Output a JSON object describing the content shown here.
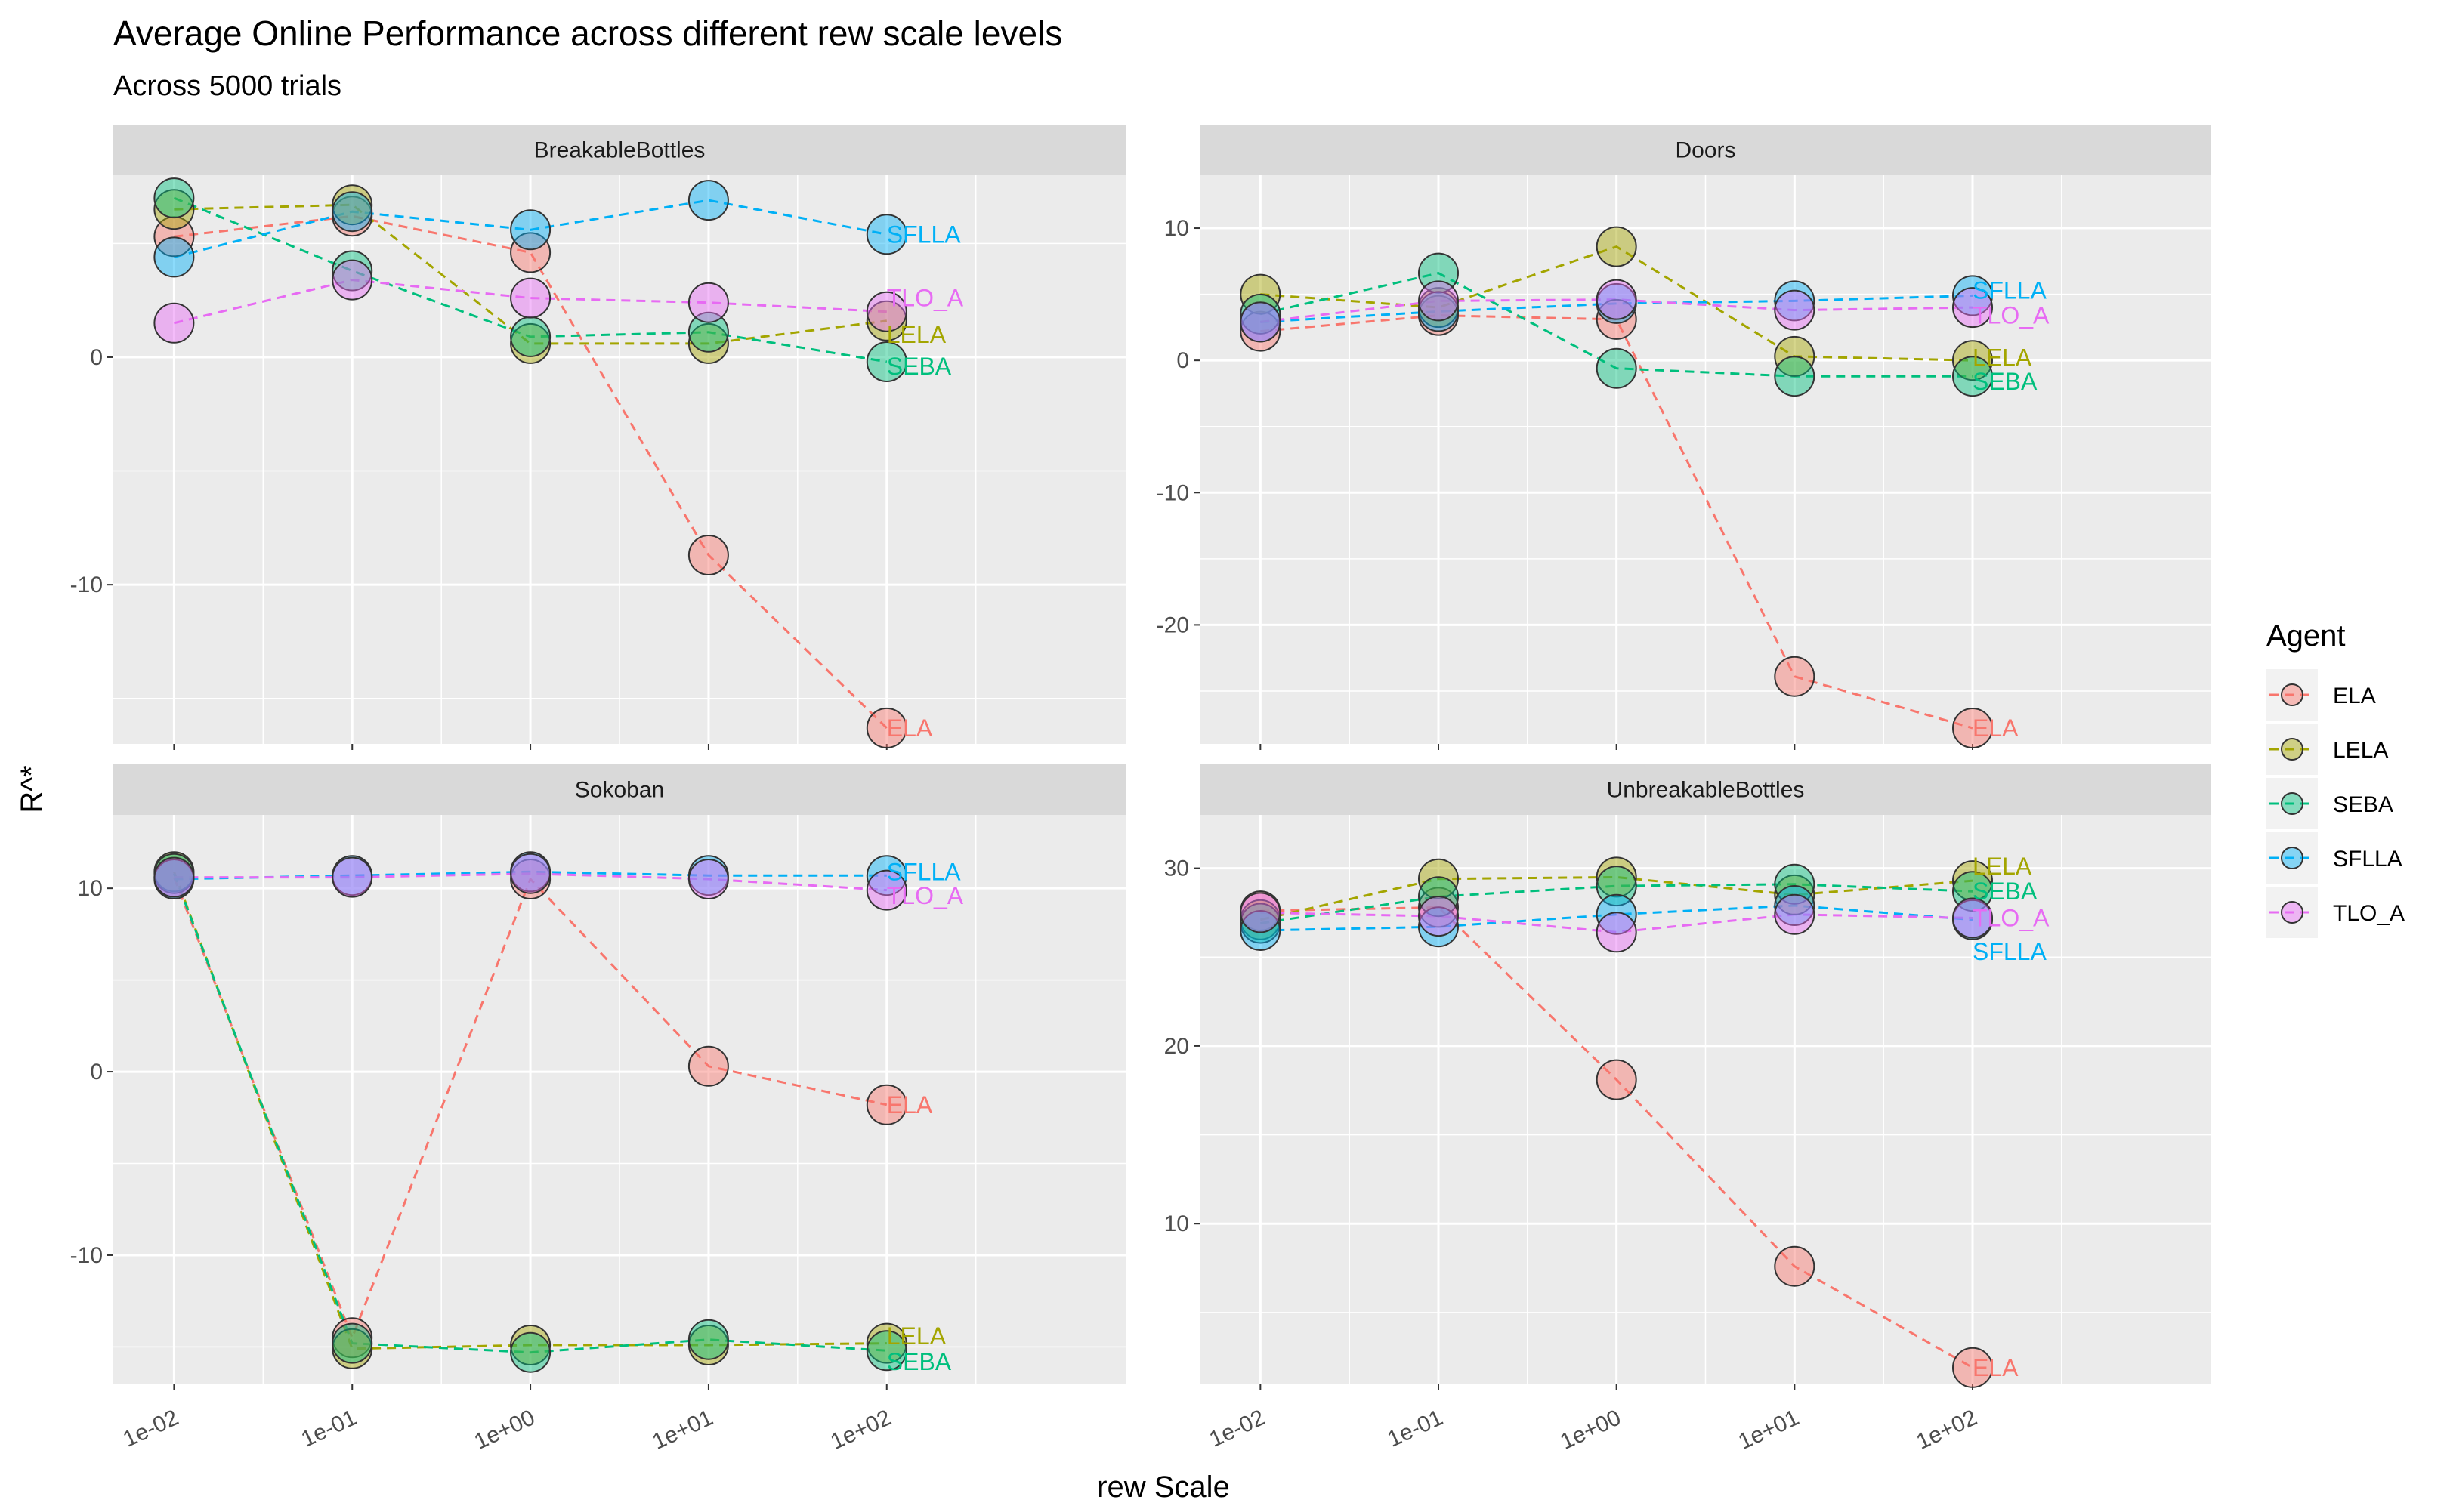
{
  "title": "Average Online Performance across different rew scale levels",
  "subtitle": "Across 5000 trials",
  "xlabel": "rew Scale",
  "ylabel": "R^*",
  "legend": {
    "title": "Agent",
    "items": [
      {
        "name": "ELA",
        "color": "#F8766D"
      },
      {
        "name": "LELA",
        "color": "#A3A500"
      },
      {
        "name": "SEBA",
        "color": "#00BF7D"
      },
      {
        "name": "SFLLA",
        "color": "#00B0F6"
      },
      {
        "name": "TLO_A",
        "color": "#E76BF3"
      }
    ]
  },
  "chart_data": {
    "type": "line",
    "x_scale": "log10",
    "x": [
      0.01,
      0.1,
      1,
      10,
      100
    ],
    "x_tick_labels": [
      "1e-02",
      "1e-01",
      "1e+00",
      "1e+01",
      "1e+02"
    ],
    "xlim": [
      0.01,
      1000
    ],
    "panels": [
      {
        "title": "BreakableBottles",
        "ylim": [
          -17,
          8
        ],
        "y_ticks": [
          0,
          -10
        ],
        "y_tick_labels": [
          "0",
          "-10"
        ],
        "series": [
          {
            "name": "ELA",
            "values": [
              5.3,
              6.2,
              4.6,
              -8.7,
              -16.3
            ]
          },
          {
            "name": "LELA",
            "values": [
              6.5,
              6.7,
              0.6,
              0.6,
              1.6
            ]
          },
          {
            "name": "SEBA",
            "values": [
              7.0,
              3.8,
              0.9,
              1.1,
              -0.2
            ]
          },
          {
            "name": "SFLLA",
            "values": [
              4.4,
              6.4,
              5.6,
              6.9,
              5.4
            ]
          },
          {
            "name": "TLO_A",
            "values": [
              1.5,
              3.4,
              2.6,
              2.4,
              2.0
            ]
          }
        ],
        "end_labels": [
          {
            "text": "SFLLA",
            "series": "SFLLA",
            "value": 5.4
          },
          {
            "text": "TLO_A",
            "series": "TLO_A",
            "value": 2.6
          },
          {
            "text": "LELA",
            "series": "LELA",
            "value": 1.0
          },
          {
            "text": "SEBA",
            "series": "SEBA",
            "value": -0.4
          },
          {
            "text": "ELA",
            "series": "ELA",
            "value": -16.3
          }
        ]
      },
      {
        "title": "Doors",
        "ylim": [
          -29,
          14
        ],
        "y_ticks": [
          10,
          0,
          -10,
          -20
        ],
        "y_tick_labels": [
          "10",
          "0",
          "-10",
          "-20"
        ],
        "series": [
          {
            "name": "ELA",
            "values": [
              2.2,
              3.4,
              3.1,
              -23.9,
              -27.8
            ]
          },
          {
            "name": "LELA",
            "values": [
              5.0,
              4.0,
              8.6,
              0.3,
              0.0
            ]
          },
          {
            "name": "SEBA",
            "values": [
              3.5,
              6.6,
              -0.6,
              -1.2,
              -1.2
            ]
          },
          {
            "name": "SFLLA",
            "values": [
              2.9,
              3.7,
              4.3,
              4.5,
              4.9
            ]
          },
          {
            "name": "TLO_A",
            "values": [
              2.9,
              4.5,
              4.6,
              3.8,
              4.0
            ]
          }
        ],
        "end_labels": [
          {
            "text": "SFLLA",
            "series": "SFLLA",
            "value": 5.3
          },
          {
            "text": "TLO_A",
            "series": "TLO_A",
            "value": 3.4
          },
          {
            "text": "LELA",
            "series": "LELA",
            "value": 0.2
          },
          {
            "text": "SEBA",
            "series": "SEBA",
            "value": -1.6
          },
          {
            "text": "ELA",
            "series": "ELA",
            "value": -27.8
          }
        ]
      },
      {
        "title": "Sokoban",
        "ylim": [
          -17,
          14
        ],
        "y_ticks": [
          10,
          0,
          -10
        ],
        "y_tick_labels": [
          "10",
          "0",
          "-10"
        ],
        "series": [
          {
            "name": "ELA",
            "values": [
              10.6,
              -14.5,
              10.5,
              0.3,
              -1.8
            ]
          },
          {
            "name": "LELA",
            "values": [
              10.9,
              -15.1,
              -14.9,
              -14.9,
              -14.8
            ]
          },
          {
            "name": "SEBA",
            "values": [
              10.8,
              -14.8,
              -15.3,
              -14.6,
              -15.2
            ]
          },
          {
            "name": "SFLLA",
            "values": [
              10.5,
              10.7,
              10.9,
              10.7,
              10.7
            ]
          },
          {
            "name": "TLO_A",
            "values": [
              10.6,
              10.6,
              10.8,
              10.5,
              9.9
            ]
          }
        ],
        "end_labels": [
          {
            "text": "SFLLA",
            "series": "SFLLA",
            "value": 10.9
          },
          {
            "text": "TLO_A",
            "series": "TLO_A",
            "value": 9.6
          },
          {
            "text": "ELA",
            "series": "ELA",
            "value": -1.8
          },
          {
            "text": "LELA",
            "series": "LELA",
            "value": -14.4
          },
          {
            "text": "SEBA",
            "series": "SEBA",
            "value": -15.8
          }
        ]
      },
      {
        "title": "UnbreakableBottles",
        "ylim": [
          1,
          33
        ],
        "y_ticks": [
          30,
          20,
          10
        ],
        "y_tick_labels": [
          "30",
          "20",
          "10"
        ],
        "series": [
          {
            "name": "ELA",
            "values": [
              27.6,
              27.8,
              18.1,
              7.6,
              1.9
            ]
          },
          {
            "name": "LELA",
            "values": [
              27.1,
              29.4,
              29.5,
              28.5,
              29.3
            ]
          },
          {
            "name": "SEBA",
            "values": [
              26.9,
              28.4,
              29.0,
              29.1,
              28.7
            ]
          },
          {
            "name": "SFLLA",
            "values": [
              26.5,
              26.7,
              27.4,
              27.9,
              27.1
            ]
          },
          {
            "name": "TLO_A",
            "values": [
              27.5,
              27.3,
              26.4,
              27.4,
              27.2
            ]
          }
        ],
        "end_labels": [
          {
            "text": "LELA",
            "series": "LELA",
            "value": 30.1
          },
          {
            "text": "SEBA",
            "series": "SEBA",
            "value": 28.7
          },
          {
            "text": "TLO_A",
            "series": "TLO_A",
            "value": 27.2
          },
          {
            "text": "SFLLA",
            "series": "SFLLA",
            "value": 25.3
          },
          {
            "text": "ELA",
            "series": "ELA",
            "value": 1.9
          }
        ]
      }
    ]
  }
}
